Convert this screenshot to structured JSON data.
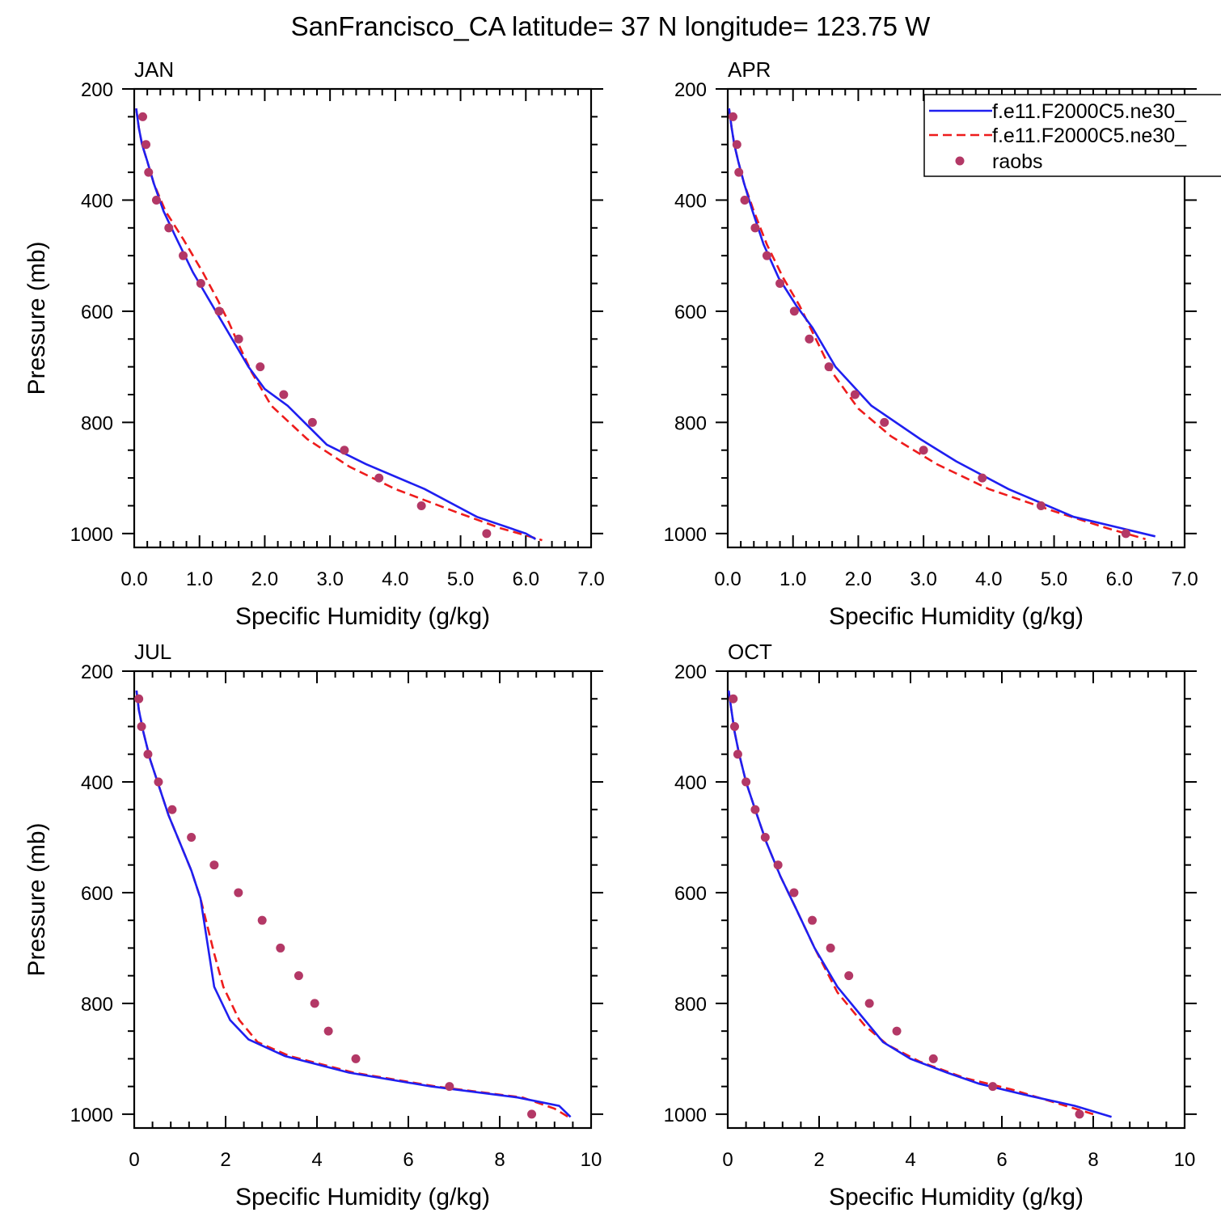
{
  "title": "SanFrancisco_CA  latitude= 37 N longitude= 123.75 W",
  "colors": {
    "model1": "#1f1ff0",
    "model2": "#ee1c1c",
    "raobs": "#b33866",
    "axis": "#000000"
  },
  "legend": {
    "placement": "top-right of APR panel",
    "entries": [
      {
        "label": "f.e11.F2000C5.ne30_",
        "style": "solid",
        "color": "#1f1ff0"
      },
      {
        "label": "f.e11.F2000C5.ne30_",
        "style": "dashed",
        "color": "#ee1c1c"
      },
      {
        "label": "raobs",
        "style": "marker",
        "color": "#b33866"
      }
    ]
  },
  "chart_data": [
    {
      "type": "line",
      "panel_title": "JAN",
      "xlabel": "Specific Humidity (g/kg)",
      "ylabel": "Pressure (mb)",
      "xlim": [
        0,
        7
      ],
      "ylim": [
        1025,
        200
      ],
      "xticks": [
        0,
        1,
        2,
        3,
        4,
        5,
        6,
        7
      ],
      "xtick_labels": [
        "0.0",
        "1.0",
        "2.0",
        "3.0",
        "4.0",
        "5.0",
        "6.0",
        "7.0"
      ],
      "xtick_minor": 0.2,
      "yticks": [
        200,
        400,
        600,
        800,
        1000
      ],
      "ytick_labels": [
        "200",
        "400",
        "600",
        "800",
        "1000"
      ],
      "ytick_minor": 50,
      "series": [
        {
          "x": [
            0.03,
            0.07,
            0.12,
            0.2,
            0.3,
            0.45,
            0.65,
            0.9,
            1.15,
            1.35,
            1.55,
            1.75,
            2.0,
            2.35,
            2.95,
            3.55,
            4.45,
            5.25,
            6.0,
            6.15
          ],
          "y": [
            235,
            270,
            300,
            330,
            370,
            420,
            470,
            530,
            580,
            620,
            660,
            700,
            740,
            770,
            840,
            875,
            920,
            970,
            1000,
            1010
          ]
        },
        {
          "x": [
            0.03,
            0.07,
            0.12,
            0.2,
            0.3,
            0.48,
            0.75,
            1.05,
            1.28,
            1.45,
            1.6,
            1.8,
            2.1,
            2.65,
            3.3,
            4.0,
            4.9,
            5.6,
            6.05,
            6.25
          ],
          "y": [
            235,
            270,
            300,
            330,
            370,
            420,
            470,
            530,
            580,
            620,
            660,
            710,
            770,
            830,
            880,
            920,
            960,
            990,
            1005,
            1012
          ]
        },
        {
          "x": [
            0.13,
            0.18,
            0.22,
            0.34,
            0.53,
            0.75,
            1.02,
            1.3,
            1.6,
            1.93,
            2.29,
            2.73,
            3.22,
            3.75,
            4.4,
            5.4
          ],
          "y": [
            250,
            300,
            350,
            400,
            450,
            500,
            550,
            600,
            650,
            700,
            750,
            800,
            850,
            900,
            950,
            1000
          ]
        }
      ]
    },
    {
      "type": "line",
      "panel_title": "APR",
      "xlabel": "Specific Humidity (g/kg)",
      "ylabel": "",
      "xlim": [
        0,
        7
      ],
      "ylim": [
        1025,
        200
      ],
      "xticks": [
        0,
        1,
        2,
        3,
        4,
        5,
        6,
        7
      ],
      "xtick_labels": [
        "0.0",
        "1.0",
        "2.0",
        "3.0",
        "4.0",
        "5.0",
        "6.0",
        "7.0"
      ],
      "xtick_minor": 0.2,
      "yticks": [
        200,
        400,
        600,
        800,
        1000
      ],
      "ytick_labels": [
        "200",
        "400",
        "600",
        "800",
        "1000"
      ],
      "ytick_minor": 50,
      "series": [
        {
          "x": [
            0.02,
            0.06,
            0.1,
            0.16,
            0.25,
            0.38,
            0.55,
            0.78,
            1.05,
            1.3,
            1.65,
            2.2,
            2.95,
            3.5,
            4.3,
            5.3,
            6.55
          ],
          "y": [
            235,
            270,
            300,
            330,
            370,
            420,
            480,
            540,
            590,
            630,
            700,
            770,
            830,
            870,
            920,
            970,
            1005
          ]
        },
        {
          "x": [
            0.02,
            0.06,
            0.1,
            0.16,
            0.25,
            0.4,
            0.6,
            0.85,
            1.1,
            1.35,
            1.6,
            2.0,
            2.5,
            3.2,
            4.0,
            5.0,
            5.8,
            6.4
          ],
          "y": [
            235,
            270,
            300,
            330,
            370,
            420,
            480,
            540,
            590,
            650,
            710,
            775,
            825,
            875,
            920,
            960,
            990,
            1010
          ]
        },
        {
          "x": [
            0.08,
            0.14,
            0.17,
            0.26,
            0.42,
            0.6,
            0.8,
            1.02,
            1.25,
            1.55,
            1.95,
            2.4,
            3.0,
            3.9,
            4.8,
            6.1
          ],
          "y": [
            250,
            300,
            350,
            400,
            450,
            500,
            550,
            600,
            650,
            700,
            750,
            800,
            850,
            900,
            950,
            1000
          ]
        }
      ]
    },
    {
      "type": "line",
      "panel_title": "JUL",
      "xlabel": "Specific Humidity (g/kg)",
      "ylabel": "Pressure (mb)",
      "xlim": [
        0,
        10
      ],
      "ylim": [
        1025,
        200
      ],
      "xticks": [
        0,
        2,
        4,
        6,
        8,
        10
      ],
      "xtick_labels": [
        "0",
        "2",
        "4",
        "6",
        "8",
        "10"
      ],
      "xtick_minor": 0.4,
      "yticks": [
        200,
        400,
        600,
        800,
        1000
      ],
      "ytick_labels": [
        "200",
        "400",
        "600",
        "800",
        "1000"
      ],
      "ytick_minor": 50,
      "series": [
        {
          "x": [
            0.05,
            0.1,
            0.2,
            0.35,
            0.55,
            0.75,
            1.0,
            1.25,
            1.45,
            1.6,
            1.75,
            2.1,
            2.5,
            3.3,
            4.7,
            6.5,
            8.4,
            9.3,
            9.55
          ],
          "y": [
            235,
            270,
            310,
            360,
            410,
            460,
            510,
            560,
            610,
            690,
            770,
            830,
            865,
            895,
            925,
            950,
            970,
            985,
            1005
          ]
        },
        {
          "x": [
            0.05,
            0.1,
            0.2,
            0.35,
            0.55,
            0.75,
            1.0,
            1.25,
            1.45,
            1.6,
            1.75,
            1.95,
            2.3,
            2.7,
            3.4,
            4.8,
            6.6,
            8.5,
            9.2,
            9.5
          ],
          "y": [
            235,
            270,
            310,
            360,
            410,
            460,
            510,
            560,
            610,
            660,
            710,
            770,
            830,
            870,
            895,
            925,
            950,
            970,
            990,
            1005
          ]
        },
        {
          "x": [
            0.1,
            0.16,
            0.3,
            0.53,
            0.83,
            1.25,
            1.75,
            2.28,
            2.8,
            3.2,
            3.6,
            3.95,
            4.25,
            4.85,
            6.9,
            8.7
          ],
          "y": [
            250,
            300,
            350,
            400,
            450,
            500,
            550,
            600,
            650,
            700,
            750,
            800,
            850,
            900,
            950,
            1000
          ]
        }
      ]
    },
    {
      "type": "line",
      "panel_title": "OCT",
      "xlabel": "Specific Humidity (g/kg)",
      "ylabel": "",
      "xlim": [
        0,
        10
      ],
      "ylim": [
        1025,
        200
      ],
      "xticks": [
        0,
        2,
        4,
        6,
        8,
        10
      ],
      "xtick_labels": [
        "0",
        "2",
        "4",
        "6",
        "8",
        "10"
      ],
      "xtick_minor": 0.4,
      "yticks": [
        200,
        400,
        600,
        800,
        1000
      ],
      "ytick_labels": [
        "200",
        "400",
        "600",
        "800",
        "1000"
      ],
      "ytick_minor": 50,
      "series": [
        {
          "x": [
            0.02,
            0.08,
            0.15,
            0.25,
            0.4,
            0.6,
            0.85,
            1.15,
            1.5,
            1.9,
            2.4,
            3.0,
            3.4,
            4.0,
            4.8,
            5.5,
            6.5,
            7.6,
            8.4
          ],
          "y": [
            235,
            270,
            310,
            350,
            400,
            450,
            510,
            570,
            630,
            700,
            770,
            830,
            870,
            900,
            925,
            945,
            965,
            985,
            1005
          ]
        },
        {
          "x": [
            0.02,
            0.08,
            0.15,
            0.25,
            0.4,
            0.6,
            0.85,
            1.15,
            1.5,
            1.9,
            2.4,
            3.0,
            3.5,
            4.2,
            5.2,
            6.2,
            7.2,
            8.0
          ],
          "y": [
            235,
            270,
            310,
            350,
            400,
            450,
            510,
            570,
            630,
            700,
            780,
            840,
            875,
            905,
            935,
            955,
            980,
            1000
          ]
        },
        {
          "x": [
            0.12,
            0.15,
            0.22,
            0.4,
            0.6,
            0.82,
            1.1,
            1.45,
            1.85,
            2.25,
            2.65,
            3.1,
            3.7,
            4.5,
            5.8,
            7.7
          ],
          "y": [
            250,
            300,
            350,
            400,
            450,
            500,
            550,
            600,
            650,
            700,
            750,
            800,
            850,
            900,
            950,
            1000
          ]
        }
      ]
    }
  ]
}
